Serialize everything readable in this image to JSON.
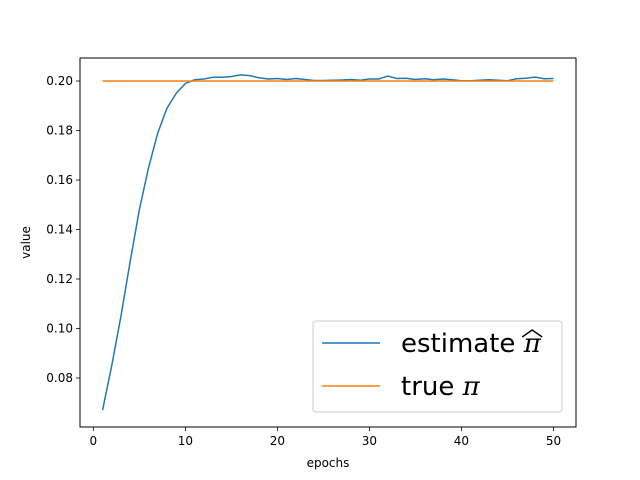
{
  "chart_data": {
    "type": "line",
    "xlabel": "epochs",
    "ylabel": "value",
    "xlim": [
      -1.45,
      52.45
    ],
    "ylim": [
      0.0602,
      0.2093
    ],
    "xticks": [
      0,
      10,
      20,
      30,
      40,
      50
    ],
    "yticks": [
      0.08,
      0.1,
      0.12,
      0.14,
      0.16,
      0.18,
      0.2
    ],
    "ytick_labels": [
      "0.08",
      "0.10",
      "0.12",
      "0.14",
      "0.16",
      "0.18",
      "0.20"
    ],
    "grid": false,
    "legend": {
      "placement": "lower-right"
    },
    "series": [
      {
        "name": "estimate",
        "name_math": "π",
        "name_math_hat": true,
        "color": "#1f77b4",
        "x": [
          1,
          2,
          3,
          4,
          5,
          6,
          7,
          8,
          9,
          10,
          11,
          12,
          13,
          14,
          15,
          16,
          17,
          18,
          19,
          20,
          21,
          22,
          23,
          24,
          25,
          26,
          27,
          28,
          29,
          30,
          31,
          32,
          33,
          34,
          35,
          36,
          37,
          38,
          39,
          40,
          41,
          42,
          43,
          44,
          45,
          46,
          47,
          48,
          49,
          50
        ],
        "y": [
          0.067,
          0.085,
          0.105,
          0.127,
          0.148,
          0.165,
          0.179,
          0.189,
          0.195,
          0.199,
          0.2005,
          0.2008,
          0.2015,
          0.2015,
          0.2018,
          0.2025,
          0.2022,
          0.2013,
          0.2008,
          0.201,
          0.2006,
          0.201,
          0.2006,
          0.2002,
          0.2002,
          0.2003,
          0.2004,
          0.2006,
          0.2003,
          0.2008,
          0.2008,
          0.202,
          0.201,
          0.2011,
          0.2006,
          0.2009,
          0.2005,
          0.2008,
          0.2005,
          0.2001,
          0.2001,
          0.2003,
          0.2005,
          0.2003,
          0.2001,
          0.2009,
          0.2011,
          0.2016,
          0.2009,
          0.201
        ]
      },
      {
        "name": "true",
        "name_math": "π",
        "name_math_hat": false,
        "color": "#ff7f0e",
        "x": [
          1,
          50
        ],
        "y": [
          0.2,
          0.2
        ]
      }
    ]
  }
}
